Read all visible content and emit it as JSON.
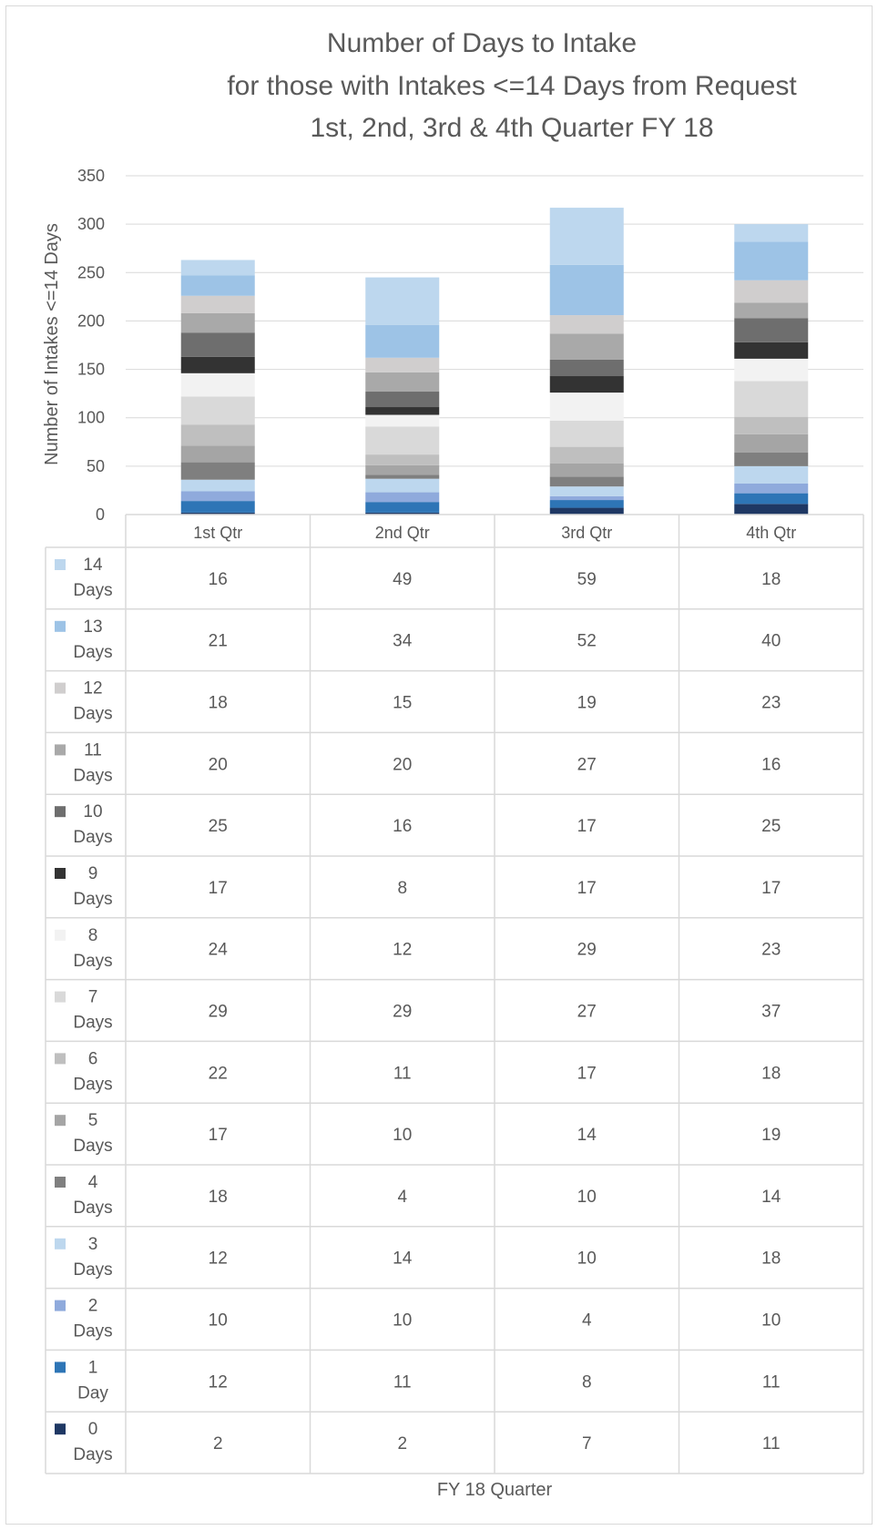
{
  "chart_data": {
    "type": "bar",
    "stacked": true,
    "title_lines": [
      "Number of Days to Intake",
      "for those with Intakes <=14 Days from Request",
      "1st, 2nd, 3rd & 4th Quarter FY 18"
    ],
    "xlabel": "FY 18 Quarter",
    "ylabel": "Number of Intakes <=14 Days",
    "ylim": [
      0,
      350
    ],
    "yticks": [
      0,
      50,
      100,
      150,
      200,
      250,
      300,
      350
    ],
    "grid": true,
    "data_table": true,
    "categories": [
      "1st Qtr",
      "2nd Qtr",
      "3rd Qtr",
      "4th Qtr"
    ],
    "series": [
      {
        "name_lines": [
          "0",
          "Days"
        ],
        "color": "#1f3864",
        "values": [
          2,
          2,
          7,
          11
        ]
      },
      {
        "name_lines": [
          "1",
          "Day"
        ],
        "color": "#2e75b6",
        "values": [
          12,
          11,
          8,
          11
        ]
      },
      {
        "name_lines": [
          "2",
          "Days"
        ],
        "color": "#8faadc",
        "values": [
          10,
          10,
          4,
          10
        ]
      },
      {
        "name_lines": [
          "3",
          "Days"
        ],
        "color": "#bdd7ee",
        "values": [
          12,
          14,
          10,
          18
        ]
      },
      {
        "name_lines": [
          "4",
          "Days"
        ],
        "color": "#7f7f7f",
        "values": [
          18,
          4,
          10,
          14
        ]
      },
      {
        "name_lines": [
          "5",
          "Days"
        ],
        "color": "#a5a5a5",
        "values": [
          17,
          10,
          14,
          19
        ]
      },
      {
        "name_lines": [
          "6",
          "Days"
        ],
        "color": "#bfbfbf",
        "values": [
          22,
          11,
          17,
          18
        ]
      },
      {
        "name_lines": [
          "7",
          "Days"
        ],
        "color": "#d9d9d9",
        "values": [
          29,
          29,
          27,
          37
        ]
      },
      {
        "name_lines": [
          "8",
          "Days"
        ],
        "color": "#f2f2f2",
        "values": [
          24,
          12,
          29,
          23
        ]
      },
      {
        "name_lines": [
          "9",
          "Days"
        ],
        "color": "#333333",
        "values": [
          17,
          8,
          17,
          17
        ]
      },
      {
        "name_lines": [
          "10",
          "Days"
        ],
        "color": "#6e6e6e",
        "values": [
          25,
          16,
          17,
          25
        ]
      },
      {
        "name_lines": [
          "11",
          "Days"
        ],
        "color": "#a9a9a9",
        "values": [
          20,
          20,
          27,
          16
        ]
      },
      {
        "name_lines": [
          "12",
          "Days"
        ],
        "color": "#d0cece",
        "values": [
          18,
          15,
          19,
          23
        ]
      },
      {
        "name_lines": [
          "13",
          "Days"
        ],
        "color": "#9dc3e6",
        "values": [
          21,
          34,
          52,
          40
        ]
      },
      {
        "name_lines": [
          "14",
          "Days"
        ],
        "color": "#bdd7ee",
        "values": [
          16,
          49,
          59,
          18
        ]
      }
    ]
  }
}
